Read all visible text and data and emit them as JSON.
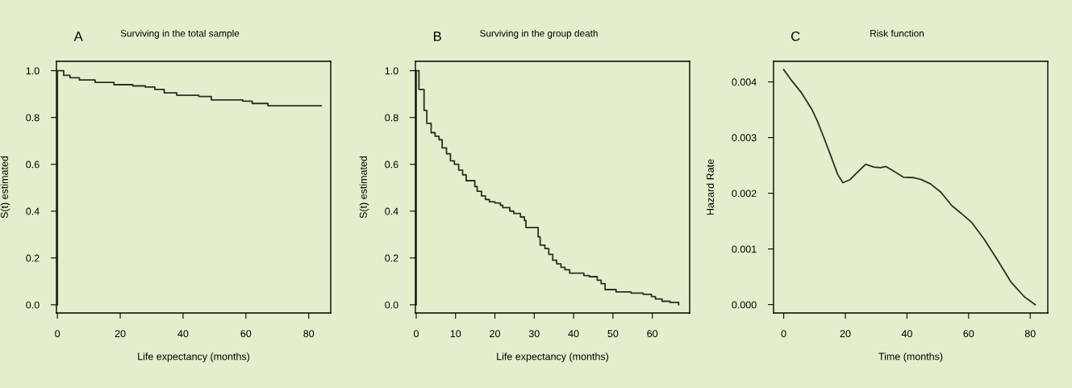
{
  "chart_data": [
    {
      "type": "step",
      "title": "Surviving in the total sample",
      "annotations": [
        "A"
      ],
      "xlabel": "Life expectancy (months)",
      "ylabel": "S(t) estimated",
      "x": [
        0,
        0,
        1,
        2,
        4,
        7,
        12,
        18,
        24,
        28,
        31,
        34,
        38,
        45,
        49,
        59,
        62,
        67,
        84
      ],
      "values": [
        0,
        1.0,
        1.0,
        0.98,
        0.97,
        0.96,
        0.95,
        0.94,
        0.935,
        0.93,
        0.92,
        0.905,
        0.895,
        0.89,
        0.875,
        0.87,
        0.86,
        0.85,
        0.85
      ],
      "color": "#2b3024",
      "xlim": [
        -0.3,
        87
      ],
      "ylim": [
        -0.035,
        1.04
      ],
      "xticks": [
        0,
        20,
        40,
        60,
        80
      ],
      "yticks": [
        {
          "value": 0,
          "label": "0.0"
        },
        0.2,
        0.4,
        0.6,
        0.8,
        {
          "value": 1,
          "label": "1.0"
        }
      ]
    },
    {
      "type": "step",
      "title": "Surviving in the group death",
      "annotations": [
        "B"
      ],
      "xlabel": "Life expectancy (months)",
      "ylabel": "S(t) estimated",
      "x": [
        0,
        0,
        0.7,
        2,
        2.7,
        3.8,
        4.8,
        5.8,
        6.6,
        7.7,
        8.7,
        9.7,
        10.8,
        11.8,
        12.7,
        14.9,
        15.5,
        16.6,
        17.6,
        18.6,
        20,
        21.4,
        22,
        23.8,
        24.8,
        26.5,
        27.5,
        27.9,
        31,
        31.5,
        32.7,
        33.7,
        34.7,
        35.7,
        36.8,
        37.8,
        39,
        42.6,
        44,
        46,
        47,
        48,
        50.8,
        54.6,
        57.7,
        59.8,
        60.8,
        62.5,
        64.5,
        66.7
      ],
      "values": [
        0,
        1.0,
        0.92,
        0.83,
        0.775,
        0.735,
        0.72,
        0.705,
        0.67,
        0.645,
        0.615,
        0.6,
        0.575,
        0.555,
        0.53,
        0.505,
        0.485,
        0.465,
        0.45,
        0.44,
        0.435,
        0.425,
        0.415,
        0.4,
        0.39,
        0.375,
        0.36,
        0.33,
        0.29,
        0.255,
        0.24,
        0.215,
        0.19,
        0.175,
        0.16,
        0.15,
        0.135,
        0.125,
        0.12,
        0.105,
        0.09,
        0.065,
        0.055,
        0.05,
        0.045,
        0.035,
        0.025,
        0.015,
        0.01,
        0.0
      ],
      "color": "#2b3024",
      "xlim": [
        -0.2,
        69.5
      ],
      "ylim": [
        -0.035,
        1.04
      ],
      "xticks": [
        0,
        10,
        20,
        30,
        40,
        50,
        60
      ],
      "yticks": [
        {
          "value": 0,
          "label": "0.0"
        },
        0.2,
        0.4,
        0.6,
        0.8,
        {
          "value": 1,
          "label": "1.0"
        }
      ]
    },
    {
      "type": "line",
      "title": "Risk function",
      "annotations": [
        "C"
      ],
      "xlabel": "Time (months)",
      "ylabel": "Hazard Rate",
      "x": [
        0,
        2.2,
        5.7,
        7.4,
        9.2,
        10.9,
        13.1,
        15.3,
        17.5,
        19.2,
        21.4,
        23.6,
        26.6,
        29.2,
        31.4,
        33.2,
        35.3,
        38.8,
        42.3,
        44.5,
        47.6,
        51,
        54.5,
        57.6,
        61.1,
        65,
        69.4,
        73.7,
        78.1,
        81.6
      ],
      "values": [
        0.00422,
        0.00405,
        0.00381,
        0.00366,
        0.0035,
        0.0033,
        0.00299,
        0.00267,
        0.00234,
        0.00219,
        0.00224,
        0.00236,
        0.00252,
        0.00247,
        0.00246,
        0.00248,
        0.00241,
        0.00229,
        0.00228,
        0.00225,
        0.00217,
        0.00202,
        0.00178,
        0.00164,
        0.00147,
        0.00118,
        0.0008,
        0.00041,
        0.00014,
        0.0
      ],
      "color": "#2b3024",
      "xlim": [
        -3.3,
        85.7
      ],
      "ylim": [
        -0.00015,
        0.00437
      ],
      "xticks": [
        0,
        20,
        40,
        60,
        80
      ],
      "yticks": [
        {
          "value": 0.0,
          "label": "0.000"
        },
        {
          "value": 0.001,
          "label": "0.001"
        },
        {
          "value": 0.002,
          "label": "0.002"
        },
        {
          "value": 0.003,
          "label": "0.003"
        },
        {
          "value": 0.004,
          "label": "0.004"
        }
      ]
    }
  ]
}
